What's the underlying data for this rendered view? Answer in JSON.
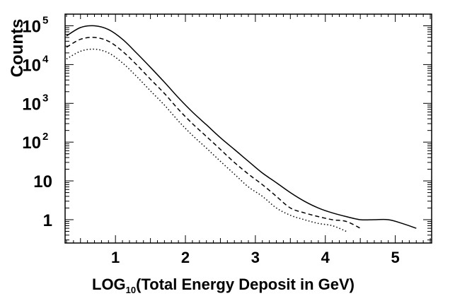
{
  "chart_data": {
    "type": "line",
    "title": "",
    "xlabel": {
      "prefix": "LOG",
      "sub": "10",
      "suffix": "(Total Energy Deposit in GeV)"
    },
    "ylabel": "Counts",
    "xlim": [
      0.28,
      5.52
    ],
    "ylim": [
      0.25,
      200000
    ],
    "y_scale": "log",
    "grid": false,
    "legend": "none",
    "x_ticks": [
      {
        "value": 1,
        "label": "1"
      },
      {
        "value": 2,
        "label": "2"
      },
      {
        "value": 3,
        "label": "3"
      },
      {
        "value": 4,
        "label": "4"
      },
      {
        "value": 5,
        "label": "5"
      }
    ],
    "y_ticks": [
      {
        "value": 1,
        "label": "1",
        "sup": ""
      },
      {
        "value": 10,
        "label": "10",
        "sup": ""
      },
      {
        "value": 100,
        "label": "10",
        "sup": "2"
      },
      {
        "value": 1000,
        "label": "10",
        "sup": "3"
      },
      {
        "value": 10000,
        "label": "10",
        "sup": "4"
      },
      {
        "value": 100000,
        "label": "10",
        "sup": "5"
      }
    ],
    "series": [
      {
        "style": "solid",
        "color": "#000000",
        "x": [
          0.3,
          0.5,
          0.7,
          0.9,
          1.1,
          1.3,
          1.5,
          1.7,
          1.9,
          2.1,
          2.3,
          2.5,
          2.7,
          2.9,
          3.1,
          3.3,
          3.5,
          3.7,
          3.9,
          4.1,
          4.3,
          4.5,
          4.7,
          4.9,
          5.1,
          5.3
        ],
        "y": [
          55000,
          90000,
          100000,
          80000,
          45000,
          20000,
          8500,
          3500,
          1400,
          600,
          280,
          130,
          65,
          32,
          16,
          9,
          5,
          3,
          2,
          1.5,
          1.2,
          1,
          1,
          1,
          0.8,
          0.6
        ]
      },
      {
        "style": "dashed",
        "color": "#000000",
        "x": [
          0.3,
          0.5,
          0.7,
          0.9,
          1.1,
          1.3,
          1.5,
          1.7,
          1.9,
          2.1,
          2.3,
          2.5,
          2.7,
          2.9,
          3.1,
          3.3,
          3.5,
          3.7,
          3.9,
          4.1,
          4.3,
          4.5
        ],
        "y": [
          28000,
          45000,
          50000,
          40000,
          22000,
          10000,
          4200,
          1800,
          700,
          300,
          140,
          65,
          30,
          15,
          8,
          4,
          2,
          1.5,
          1.2,
          1,
          0.9,
          0.6
        ]
      },
      {
        "style": "dotted",
        "color": "#000000",
        "x": [
          0.3,
          0.5,
          0.7,
          0.9,
          1.1,
          1.3,
          1.5,
          1.7,
          1.9,
          2.1,
          2.3,
          2.5,
          2.7,
          2.9,
          3.1,
          3.3,
          3.5,
          3.7,
          3.9,
          4.1,
          4.3
        ],
        "y": [
          14000,
          22000,
          25000,
          20000,
          11000,
          5000,
          2100,
          900,
          350,
          150,
          70,
          32,
          15,
          7,
          4,
          2,
          1.3,
          1,
          0.8,
          0.7,
          0.5
        ]
      }
    ]
  }
}
